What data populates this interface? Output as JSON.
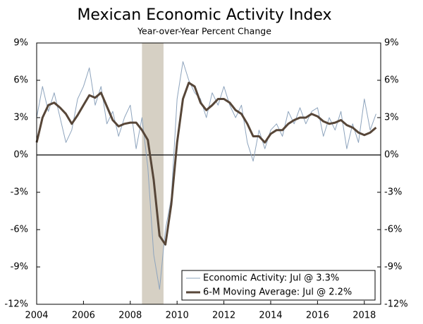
{
  "chart_data": {
    "type": "line",
    "title": "Mexican Economic Activity Index",
    "subtitle": "Year-over-Year Percent Change",
    "x": [
      2004,
      2004.25,
      2004.5,
      2004.75,
      2005,
      2005.25,
      2005.5,
      2005.75,
      2006,
      2006.25,
      2006.5,
      2006.75,
      2007,
      2007.25,
      2007.5,
      2007.75,
      2008,
      2008.25,
      2008.5,
      2008.75,
      2009,
      2009.25,
      2009.5,
      2009.75,
      2010,
      2010.25,
      2010.5,
      2010.75,
      2011,
      2011.25,
      2011.5,
      2011.75,
      2012,
      2012.25,
      2012.5,
      2012.75,
      2013,
      2013.25,
      2013.5,
      2013.75,
      2014,
      2014.25,
      2014.5,
      2014.75,
      2015,
      2015.25,
      2015.5,
      2015.75,
      2016,
      2016.25,
      2016.5,
      2016.75,
      2017,
      2017.25,
      2017.5,
      2017.75,
      2018,
      2018.25,
      2018.5
    ],
    "series": [
      {
        "name": "Economic Activity: Jul @ 3.3%",
        "color": "#8ea4bd",
        "width": 1,
        "values": [
          3.0,
          5.5,
          3.5,
          5.0,
          3.0,
          1.0,
          2.0,
          4.5,
          5.5,
          7.0,
          4.0,
          5.5,
          2.5,
          3.5,
          1.5,
          3.0,
          4.0,
          0.5,
          3.0,
          -1.0,
          -8.0,
          -10.8,
          -6.0,
          -3.5,
          4.5,
          7.5,
          6.0,
          5.0,
          4.5,
          3.0,
          5.0,
          4.0,
          5.5,
          4.0,
          3.0,
          4.0,
          1.0,
          -0.5,
          2.0,
          0.5,
          2.0,
          2.5,
          1.5,
          3.5,
          2.5,
          3.8,
          2.5,
          3.5,
          3.8,
          1.5,
          3.0,
          2.0,
          3.5,
          0.5,
          2.5,
          1.0,
          4.5,
          2.0,
          3.3
        ]
      },
      {
        "name": "6-M Moving Average: Jul @ 2.2%",
        "color": "#574638",
        "width": 3,
        "values": [
          1.0,
          3.0,
          4.0,
          4.2,
          3.8,
          3.3,
          2.5,
          3.2,
          4.0,
          4.8,
          4.6,
          5.0,
          3.9,
          2.8,
          2.3,
          2.5,
          2.6,
          2.6,
          2.0,
          1.2,
          -2.0,
          -6.5,
          -7.2,
          -4.0,
          1.0,
          4.5,
          5.8,
          5.5,
          4.2,
          3.6,
          4.0,
          4.5,
          4.5,
          4.2,
          3.6,
          3.3,
          2.5,
          1.5,
          1.5,
          1.0,
          1.7,
          2.0,
          2.0,
          2.5,
          2.8,
          3.0,
          3.0,
          3.3,
          3.1,
          2.7,
          2.5,
          2.6,
          2.8,
          2.4,
          2.2,
          1.8,
          1.6,
          1.8,
          2.2
        ]
      }
    ],
    "shaded_region": {
      "start": 2008.5,
      "end": 2009.42,
      "color": "#d6d0c4"
    },
    "xlim": [
      2004,
      2018.7
    ],
    "xticks": [
      2004,
      2006,
      2008,
      2010,
      2012,
      2014,
      2016,
      2018
    ],
    "ylim": [
      -12,
      9
    ],
    "yticks": [
      {
        "value": -12,
        "label": "-12%"
      },
      {
        "value": -9,
        "label": "-9%"
      },
      {
        "value": -6,
        "label": "-6%"
      },
      {
        "value": -3,
        "label": "-3%"
      },
      {
        "value": 0,
        "label": "0%"
      },
      {
        "value": 3,
        "label": "3%"
      },
      {
        "value": 6,
        "label": "6%"
      },
      {
        "value": 9,
        "label": "9%"
      }
    ],
    "y2lim": [
      -12,
      9
    ],
    "y2ticks": [
      {
        "value": -12,
        "label": "-12%"
      },
      {
        "value": -9,
        "label": "-9%"
      },
      {
        "value": -6,
        "label": "-6%"
      },
      {
        "value": -3,
        "label": "-3%"
      },
      {
        "value": 0,
        "label": "0%"
      },
      {
        "value": 3,
        "label": "3%"
      },
      {
        "value": 6,
        "label": "6%"
      },
      {
        "value": 9,
        "label": "9%"
      }
    ],
    "legend": "lower right"
  }
}
